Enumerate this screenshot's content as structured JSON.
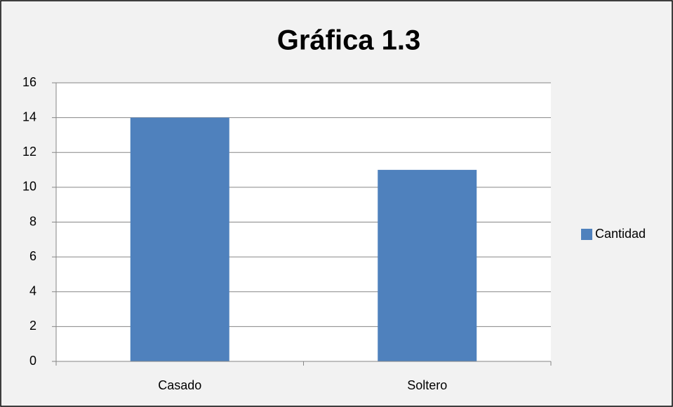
{
  "chart_data": {
    "type": "bar",
    "title": "Gráfica 1.3",
    "categories": [
      "Casado",
      "Soltero"
    ],
    "series": [
      {
        "name": "Cantidad",
        "color": "#4f81bd",
        "values": [
          14,
          11
        ]
      }
    ],
    "ylim": [
      0,
      16
    ],
    "yticks": [
      0,
      2,
      4,
      6,
      8,
      10,
      12,
      14,
      16
    ],
    "grid": true,
    "legend": "right"
  }
}
